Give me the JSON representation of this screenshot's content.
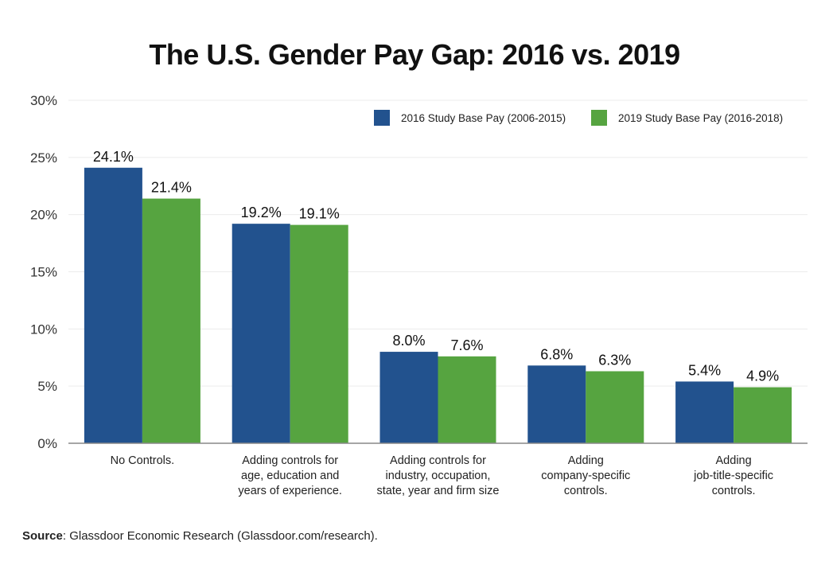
{
  "chart_data": {
    "type": "bar",
    "title": "The U.S. Gender Pay Gap: 2016 vs. 2019",
    "xlabel": "",
    "ylabel": "",
    "ylim": [
      0,
      30
    ],
    "yticks": [
      0,
      5,
      10,
      15,
      20,
      25,
      30
    ],
    "ytick_labels": [
      "0%",
      "5%",
      "10%",
      "15%",
      "20%",
      "25%",
      "30%"
    ],
    "grid": true,
    "legend_position": "top-right",
    "categories": [
      [
        "No Controls."
      ],
      [
        "Adding controls for",
        "age, education and",
        "years of experience."
      ],
      [
        "Adding controls for",
        "industry, occupation,",
        "state, year and firm size"
      ],
      [
        "Adding",
        "company-specific",
        "controls."
      ],
      [
        "Adding",
        "job-title-specific",
        "controls."
      ]
    ],
    "series": [
      {
        "name": "2016 Study Base Pay (2006-2015)",
        "color": "#22528e",
        "values": [
          24.1,
          19.2,
          8.0,
          6.8,
          5.4
        ],
        "labels": [
          "24.1%",
          "19.2%",
          "8.0%",
          "6.8%",
          "5.4%"
        ]
      },
      {
        "name": "2019 Study Base Pay (2016-2018)",
        "color": "#56a440",
        "values": [
          21.4,
          19.1,
          7.6,
          6.3,
          4.9
        ],
        "labels": [
          "21.4%",
          "19.1%",
          "7.6%",
          "6.3%",
          "4.9%"
        ]
      }
    ]
  },
  "source": {
    "label": "Source",
    "text": ": Glassdoor Economic Research (Glassdoor.com/research)."
  }
}
